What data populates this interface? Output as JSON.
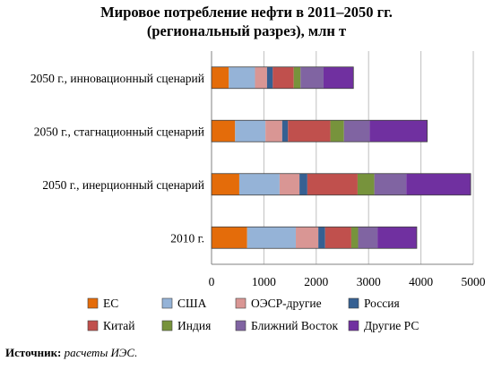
{
  "title_line1": "Мировое потребление нефти в 2011–2050 гг.",
  "title_line2": "(региональный разрез), млн т",
  "source_label": "Источник:",
  "source_text": "расчеты ИЭС.",
  "chart_data": {
    "type": "bar",
    "orientation": "horizontal",
    "stacked": true,
    "title": "Мировое потребление нефти в 2011–2050 гг. (региональный разрез), млн т",
    "categories": [
      "2050 г., инновационный сценарий",
      "2050 г., стагнационный сценарий",
      "2050 г., инерционный сценарий",
      "2010 г."
    ],
    "xlim": [
      0,
      5000
    ],
    "xticks": [
      "0",
      "1000",
      "2000",
      "3000",
      "4000",
      "5000"
    ],
    "grid": true,
    "legend_position": "bottom",
    "series": [
      {
        "name": "ЕС",
        "color": "#E46C0A",
        "values": [
          330,
          450,
          530,
          680
        ]
      },
      {
        "name": "США",
        "color": "#95B3D7",
        "values": [
          500,
          580,
          770,
          930
        ]
      },
      {
        "name": "ОЭСР-другие",
        "color": "#D99694",
        "values": [
          230,
          320,
          380,
          430
        ]
      },
      {
        "name": "Россия",
        "color": "#366092",
        "values": [
          110,
          110,
          150,
          130
        ]
      },
      {
        "name": "Китай",
        "color": "#C0504D",
        "values": [
          400,
          810,
          960,
          500
        ]
      },
      {
        "name": "Индия",
        "color": "#77933C",
        "values": [
          130,
          260,
          320,
          130
        ]
      },
      {
        "name": "Ближний Восток",
        "color": "#8064A2",
        "values": [
          440,
          490,
          610,
          370
        ]
      },
      {
        "name": "Другие РС",
        "color": "#7030A0",
        "values": [
          570,
          1100,
          1230,
          750
        ]
      }
    ]
  }
}
